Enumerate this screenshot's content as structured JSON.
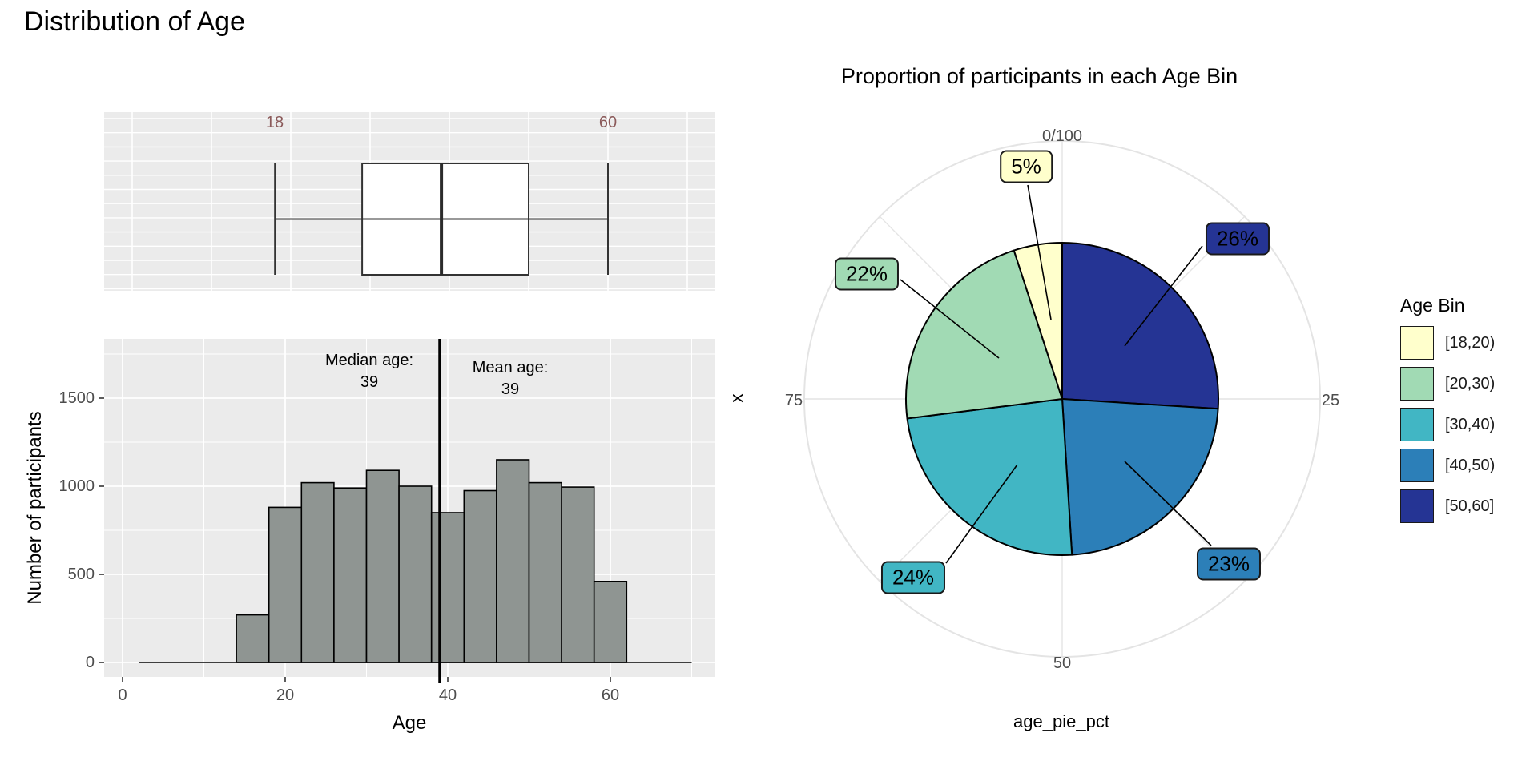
{
  "page_title": "Distribution of Age",
  "left": {
    "boxplot_axis_labels": {
      "lower": "18",
      "upper": "60"
    },
    "histogram": {
      "y_title": "Number of participants",
      "x_title": "Age",
      "y_tick_labels": [
        "1500",
        "1000",
        "500",
        "0"
      ],
      "x_tick_labels": [
        "0",
        "20",
        "40",
        "60"
      ],
      "median_annotation": [
        "Median age:",
        "39"
      ],
      "mean_annotation": [
        "Mean age:",
        "39"
      ]
    }
  },
  "right": {
    "title": "Proportion of participants in each Age Bin",
    "x_title": "age_pie_pct",
    "y_title": "x",
    "theta_tick_labels": {
      "top": "0/100",
      "right": "25",
      "bottom": "50",
      "left": "75"
    },
    "slice_labels": {
      "s18_20": "5%",
      "s20_30": "22%",
      "s30_40": "24%",
      "s40_50": "23%",
      "s50_60": "26%"
    },
    "legend": {
      "title": "Age Bin",
      "items": [
        {
          "label": "[18,20)",
          "color": "#FFFFCC"
        },
        {
          "label": "[20,30)",
          "color": "#A1DAB4"
        },
        {
          "label": "[30,40)",
          "color": "#41B6C4"
        },
        {
          "label": "[40,50)",
          "color": "#2C7FB8"
        },
        {
          "label": "[50,60]",
          "color": "#253494"
        }
      ]
    }
  },
  "colors": {
    "panel_background": "#EBEBEB",
    "panel_gridline": "#FFFFFF",
    "polar_gridline": "#E4E4E4",
    "axis_text": "#4D4D4D",
    "boxplot_range_label": "#8B5A5A",
    "histogram_bar_fill": "#8F9592",
    "outline": "#1a1a1a"
  },
  "chart_data": [
    {
      "type": "boxplot",
      "title": "Distribution of Age",
      "orientation": "horizontal",
      "variable": "Age",
      "whisker_min": 18,
      "q1": 29,
      "median": 39,
      "q3": 50,
      "whisker_max": 60,
      "shown_axis_labels": [
        18,
        60
      ],
      "x_gridlines": [
        0,
        10,
        20,
        30,
        40,
        50,
        60,
        70
      ]
    },
    {
      "type": "bar",
      "subtype": "histogram",
      "xlabel": "Age",
      "ylabel": "Number of participants",
      "bin_width": 4,
      "bin_edges": [
        14,
        18,
        22,
        26,
        30,
        34,
        38,
        42,
        46,
        50,
        54,
        58,
        62
      ],
      "values": [
        270,
        880,
        1020,
        990,
        1090,
        1000,
        850,
        975,
        1150,
        1020,
        995,
        460
      ],
      "tail_baseline_extent": [
        2,
        70
      ],
      "median_age": 39,
      "mean_age": 39,
      "median_line_x": 39,
      "ylim": [
        0,
        1850
      ],
      "yticks": [
        0,
        500,
        1000,
        1500
      ],
      "xticks": [
        0,
        20,
        40,
        60
      ],
      "grid": true
    },
    {
      "type": "pie",
      "title": "Proportion of participants in each Age Bin",
      "start_angle": "top",
      "direction": "clockwise",
      "categories": [
        "[50,60]",
        "[40,50)",
        "[30,40)",
        "[20,30)",
        "[18,20)"
      ],
      "values": [
        26,
        23,
        24,
        22,
        5
      ],
      "labels": [
        "26%",
        "23%",
        "24%",
        "22%",
        "5%"
      ],
      "colors": [
        "#253494",
        "#2C7FB8",
        "#41B6C4",
        "#A1DAB4",
        "#FFFFCC"
      ],
      "radial_tick_labels": [
        "0/100",
        "25",
        "50",
        "75"
      ],
      "xlabel": "age_pie_pct",
      "ylabel": "x",
      "legend_title": "Age Bin",
      "legend_position": "right"
    }
  ]
}
